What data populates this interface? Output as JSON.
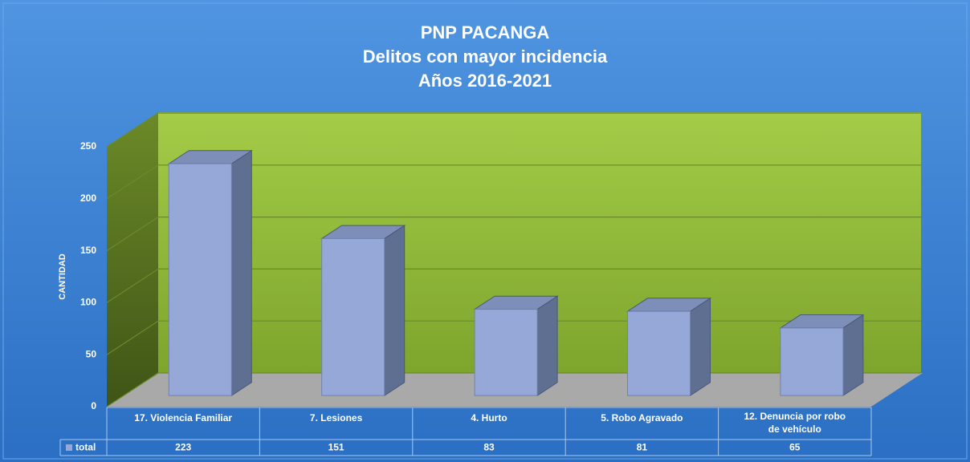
{
  "chart_data": {
    "type": "bar3d",
    "title": [
      "PNP PACANGA",
      "Delitos con mayor incidencia",
      "Años 2016-2021"
    ],
    "y_label": "CANTIDAD",
    "categories": [
      "17. Violencia Familiar",
      "7.  Lesiones",
      "4.  Hurto",
      "5.  Robo Agravado",
      [
        "12. Denuncia por robo",
        "de vehículo"
      ]
    ],
    "series": [
      {
        "name": "total",
        "color": "#95a8d8",
        "values": [
          223,
          151,
          83,
          81,
          65
        ]
      }
    ],
    "ylim": [
      0,
      250
    ],
    "yticks": [
      0,
      50,
      100,
      150,
      200,
      250
    ],
    "grid": true,
    "data_table": true
  }
}
